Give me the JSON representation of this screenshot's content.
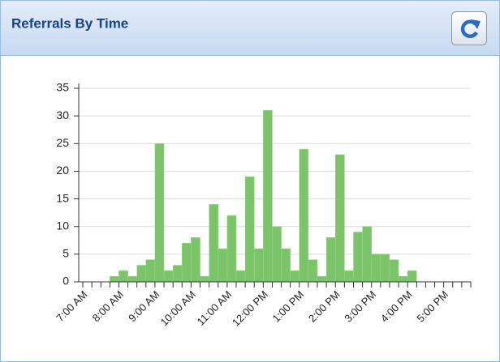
{
  "panel": {
    "title": "Referrals By Time"
  },
  "chart_data": {
    "type": "bar",
    "categories": [
      "7:00 AM",
      null,
      null,
      null,
      "8:00 AM",
      null,
      null,
      null,
      "9:00 AM",
      null,
      null,
      null,
      "10:00 AM",
      null,
      null,
      null,
      "11:00 AM",
      null,
      null,
      null,
      "12:00 PM",
      null,
      null,
      null,
      "1:00 PM",
      null,
      null,
      null,
      "2:00 PM",
      null,
      null,
      null,
      "3:00 PM",
      null,
      null,
      null,
      "4:00 PM",
      null,
      null,
      null,
      "5:00 PM",
      null,
      null
    ],
    "values": [
      0,
      0,
      0,
      1,
      2,
      1,
      3,
      4,
      25,
      2,
      3,
      7,
      8,
      1,
      14,
      6,
      12,
      2,
      19,
      6,
      31,
      10,
      6,
      2,
      24,
      4,
      1,
      8,
      23,
      2,
      9,
      10,
      5,
      5,
      4,
      1,
      2,
      0,
      0,
      0,
      0,
      0,
      0
    ],
    "color": "#7cc46a",
    "ylim": [
      0,
      35
    ],
    "yticks": [
      0,
      5,
      10,
      15,
      20,
      25,
      30,
      35
    ],
    "grid": true
  }
}
